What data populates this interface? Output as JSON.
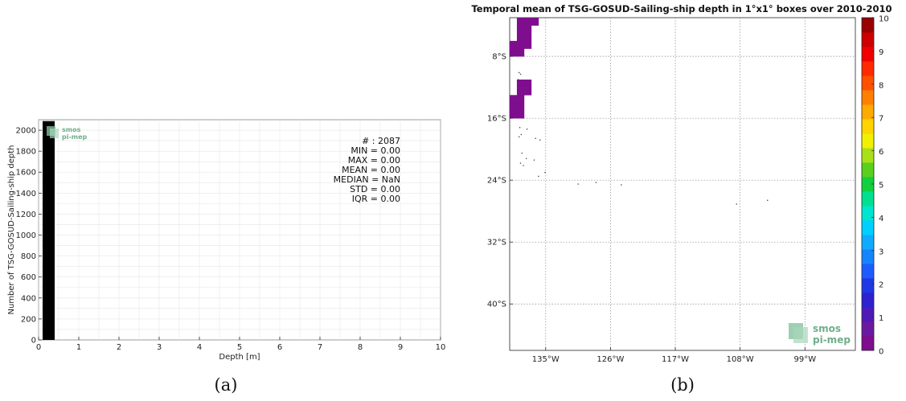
{
  "chart_data": [
    {
      "type": "bar",
      "panel": "(a)",
      "xlabel": "Depth [m]",
      "ylabel": "Number of TSG-GOSUD-Sailing-ship depth",
      "xlim": [
        0,
        10
      ],
      "ylim": [
        0,
        2100
      ],
      "xticks": [
        0,
        1,
        2,
        3,
        4,
        5,
        6,
        7,
        8,
        9,
        10
      ],
      "yticks": [
        0,
        200,
        400,
        600,
        800,
        1000,
        1200,
        1400,
        1600,
        1800,
        2000
      ],
      "bars": [
        {
          "x0": 0.1,
          "x1": 0.4,
          "value": 2087
        }
      ],
      "bar_color": "#000000",
      "grid": true,
      "stats": [
        "# : 2087",
        "MIN = 0.00",
        "MAX =  0.00",
        "MEAN = 0.00",
        "MEDIAN = NaN",
        "STD = 0.00",
        "IQR = 0.00"
      ],
      "logo": {
        "line1": "smos",
        "line2": "pi-mep"
      }
    },
    {
      "type": "heatmap",
      "panel": "(b)",
      "title": "Temporal mean of TSG-GOSUD-Sailing-ship depth in 1°x1° boxes over 2010-2010",
      "lon_range": [
        -140,
        -92
      ],
      "lat_range": [
        -46,
        -3
      ],
      "lon_ticks": [
        {
          "value": -135,
          "label": "135°W"
        },
        {
          "value": -126,
          "label": "126°W"
        },
        {
          "value": -117,
          "label": "117°W"
        },
        {
          "value": -108,
          "label": "108°W"
        },
        {
          "value": -99,
          "label": "99°W"
        }
      ],
      "lat_ticks": [
        {
          "value": -8,
          "label": "8°S"
        },
        {
          "value": -16,
          "label": "16°S"
        },
        {
          "value": -24,
          "label": "24°S"
        },
        {
          "value": -32,
          "label": "32°S"
        },
        {
          "value": -40,
          "label": "40°S"
        }
      ],
      "grid": true,
      "colorbar": {
        "min": 0,
        "max": 10,
        "ticks": [
          0,
          1,
          2,
          3,
          4,
          5,
          6,
          7,
          8,
          9,
          10
        ],
        "colors": [
          "#7e0e8e",
          "#6a1a9e",
          "#4f19b8",
          "#2f20d0",
          "#1e38e6",
          "#1f5cff",
          "#1485ff",
          "#10abff",
          "#00d0ff",
          "#00e5d0",
          "#00e08f",
          "#10d040",
          "#5ad01e",
          "#a8e01a",
          "#f0f000",
          "#ffd400",
          "#ffaa00",
          "#ff7f00",
          "#ff5000",
          "#ff2a00",
          "#f00000",
          "#cc0000",
          "#990000"
        ]
      },
      "cells": [
        {
          "lon": -139,
          "lat": -4,
          "value": 0
        },
        {
          "lon": -138,
          "lat": -4,
          "value": 0
        },
        {
          "lon": -137,
          "lat": -4,
          "value": 0
        },
        {
          "lon": -139,
          "lat": -5,
          "value": 0
        },
        {
          "lon": -138,
          "lat": -5,
          "value": 0
        },
        {
          "lon": -139,
          "lat": -6,
          "value": 0
        },
        {
          "lon": -138,
          "lat": -6,
          "value": 0
        },
        {
          "lon": -140,
          "lat": -7,
          "value": 0
        },
        {
          "lon": -139,
          "lat": -7,
          "value": 0
        },
        {
          "lon": -138,
          "lat": -7,
          "value": 0
        },
        {
          "lon": -140,
          "lat": -8,
          "value": 0
        },
        {
          "lon": -139,
          "lat": -8,
          "value": 0
        },
        {
          "lon": -139,
          "lat": -12,
          "value": 0
        },
        {
          "lon": -138,
          "lat": -12,
          "value": 0
        },
        {
          "lon": -139,
          "lat": -13,
          "value": 0
        },
        {
          "lon": -138,
          "lat": -13,
          "value": 0
        },
        {
          "lon": -140,
          "lat": -14,
          "value": 0
        },
        {
          "lon": -139,
          "lat": -14,
          "value": 0
        },
        {
          "lon": -140,
          "lat": -15,
          "value": 0
        },
        {
          "lon": -139,
          "lat": -15,
          "value": 0
        },
        {
          "lon": -140,
          "lat": -16,
          "value": 0
        },
        {
          "lon": -139,
          "lat": -16,
          "value": 0
        }
      ],
      "track_points": [
        {
          "lon": -138.7,
          "lat": -10.1
        },
        {
          "lon": -138.5,
          "lat": -10.3
        },
        {
          "lon": -138.8,
          "lat": -11.0
        },
        {
          "lon": -138.6,
          "lat": -17.2
        },
        {
          "lon": -138.4,
          "lat": -18.1
        },
        {
          "lon": -138.7,
          "lat": -18.4
        },
        {
          "lon": -136.4,
          "lat": -18.6
        },
        {
          "lon": -135.8,
          "lat": -18.8
        },
        {
          "lon": -137.6,
          "lat": -17.4
        },
        {
          "lon": -138.3,
          "lat": -20.5
        },
        {
          "lon": -137.7,
          "lat": -21.2
        },
        {
          "lon": -138.5,
          "lat": -21.8
        },
        {
          "lon": -138.1,
          "lat": -22.1
        },
        {
          "lon": -136.6,
          "lat": -21.4
        },
        {
          "lon": -135.1,
          "lat": -23.0
        },
        {
          "lon": -136.0,
          "lat": -23.5
        },
        {
          "lon": -130.5,
          "lat": -24.5
        },
        {
          "lon": -128.0,
          "lat": -24.3
        },
        {
          "lon": -124.5,
          "lat": -24.6
        },
        {
          "lon": -108.5,
          "lat": -27.1
        },
        {
          "lon": -104.2,
          "lat": -26.6
        }
      ],
      "logo": {
        "line1": "smos",
        "line2": "pi-mep"
      }
    }
  ],
  "captions": {
    "a": "(a)",
    "b": "(b)"
  }
}
